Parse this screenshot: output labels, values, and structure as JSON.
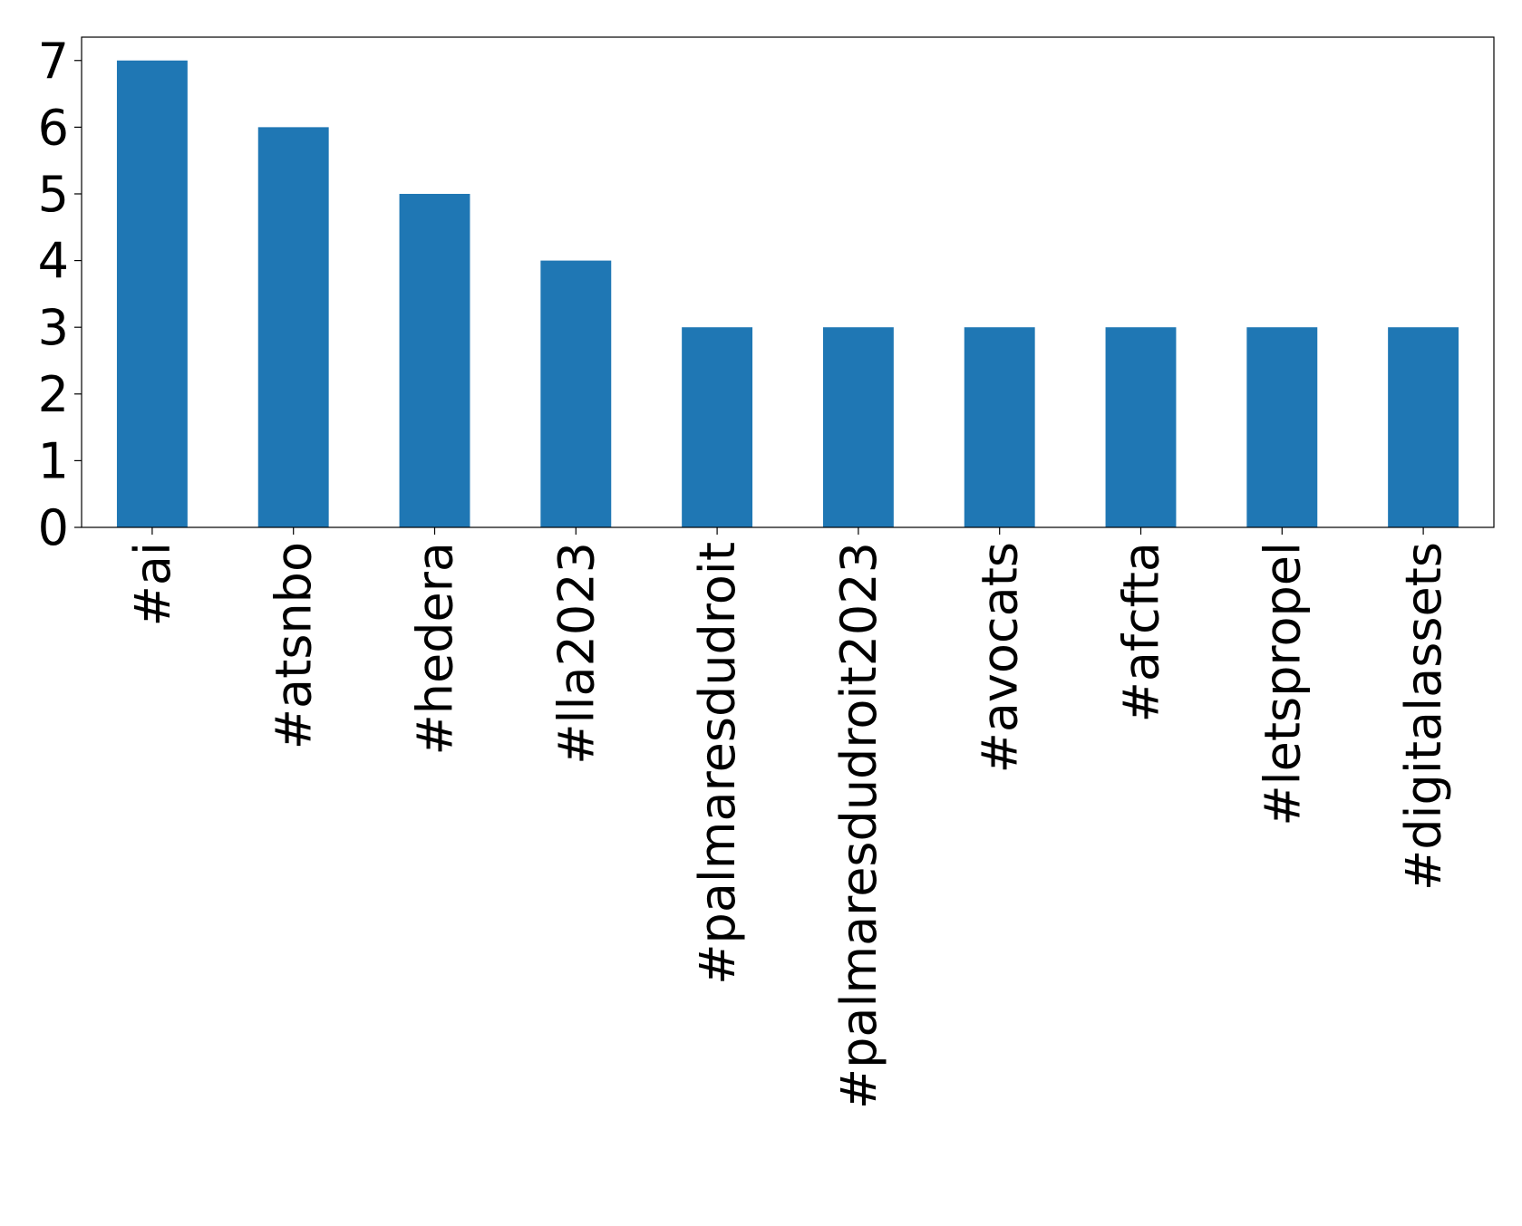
{
  "chart_data": {
    "type": "bar",
    "categories": [
      "#ai",
      "#atsnbo",
      "#hedera",
      "#lla2023",
      "#palmaresdudroit",
      "#palmaresdudroit2023",
      "#avocats",
      "#afcfta",
      "#letspropel",
      "#digitalassets"
    ],
    "values": [
      7,
      6,
      5,
      4,
      3,
      3,
      3,
      3,
      3,
      3
    ],
    "color": "#1f77b4",
    "ylim": [
      0,
      7.35
    ],
    "yticks": [
      0,
      1,
      2,
      3,
      4,
      5,
      6,
      7
    ],
    "grid": false
  }
}
